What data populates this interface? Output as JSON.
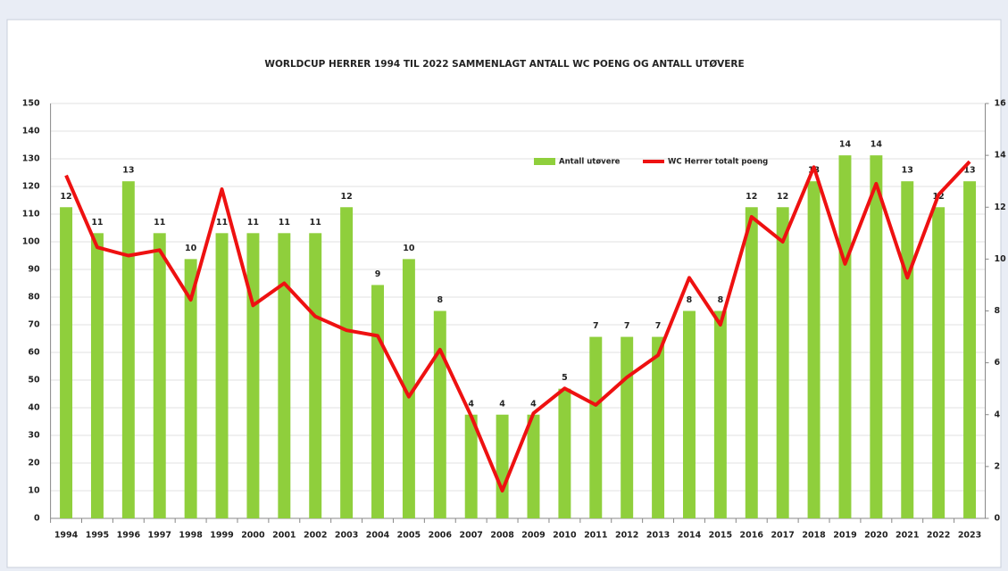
{
  "chart_data": {
    "type": "bar",
    "title": "WORLDCUP HERRER 1994 TIL 2022 SAMMENLAGT ANTALL WC POENG OG ANTALL UTØVERE",
    "categories": [
      "1994",
      "1995",
      "1996",
      "1997",
      "1998",
      "1999",
      "2000",
      "2001",
      "2002",
      "2003",
      "2004",
      "2005",
      "2006",
      "2007",
      "2008",
      "2009",
      "2010",
      "2011",
      "2012",
      "2013",
      "2014",
      "2015",
      "2016",
      "2017",
      "2018",
      "2019",
      "2020",
      "2021",
      "2022",
      "2023"
    ],
    "series": [
      {
        "name": "Antall utøvere",
        "type": "bar",
        "axis": "y2",
        "color": "#8fcf3c",
        "values": [
          12,
          11,
          13,
          11,
          10,
          11,
          11,
          11,
          11,
          12,
          9,
          10,
          8,
          4,
          4,
          4,
          5,
          7,
          7,
          7,
          8,
          8,
          12,
          12,
          13,
          14,
          14,
          13,
          12,
          13
        ]
      },
      {
        "name": "WC Herrer totalt poeng",
        "type": "line",
        "color": "#ee1111",
        "values": [
          124,
          98,
          95,
          97,
          79,
          119,
          77,
          85,
          73,
          68,
          66,
          44,
          61,
          37,
          10,
          38,
          47,
          41,
          51,
          59,
          87,
          70,
          109,
          100,
          127,
          92,
          121,
          87,
          117,
          129
        ]
      }
    ],
    "ylim": [
      0,
      150
    ],
    "yticks": [
      0,
      10,
      20,
      30,
      40,
      50,
      60,
      70,
      80,
      90,
      100,
      110,
      120,
      130,
      140,
      150
    ],
    "y2lim": [
      0,
      16
    ],
    "y2ticks": [
      0,
      2,
      4,
      6,
      8,
      10,
      12,
      14,
      16
    ],
    "grid": true,
    "legend": "top-right"
  }
}
